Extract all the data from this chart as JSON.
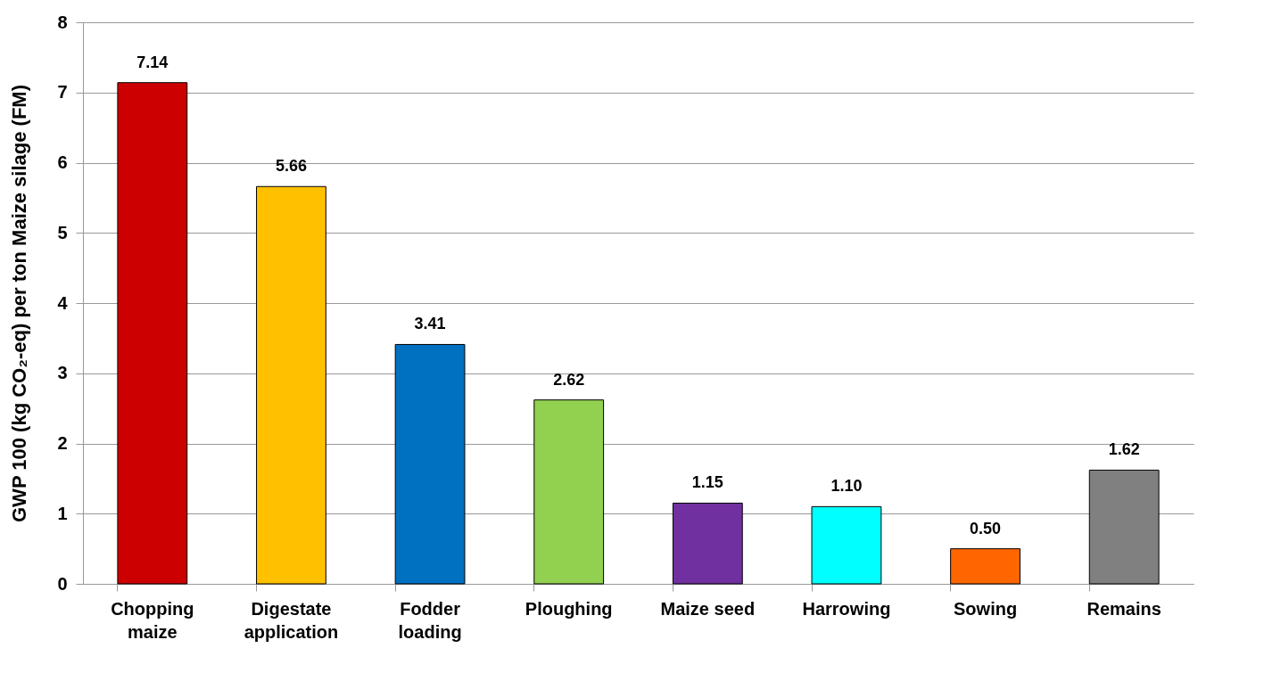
{
  "chart_data": {
    "type": "bar",
    "ylabel": "GWP 100 (kg CO₂-eq) per ton Maize silage (FM)",
    "categories": [
      "Chopping maize",
      "Digestate application",
      "Fodder loading",
      "Ploughing",
      "Maize seed",
      "Harrowing",
      "Sowing",
      "Remains"
    ],
    "values": [
      7.14,
      5.66,
      3.41,
      2.62,
      1.15,
      1.1,
      0.5,
      1.62
    ],
    "value_labels": [
      "7.14",
      "5.66",
      "3.41",
      "2.62",
      "1.15",
      "1.10",
      "0.50",
      "1.62"
    ],
    "colors": [
      "#cc0000",
      "#ffc000",
      "#0070c0",
      "#92d050",
      "#7030a0",
      "#00ffff",
      "#ff6600",
      "#808080"
    ],
    "ylim": [
      0,
      8
    ],
    "yticks": [
      0,
      1,
      2,
      3,
      4,
      5,
      6,
      7,
      8
    ],
    "grid": "y"
  }
}
